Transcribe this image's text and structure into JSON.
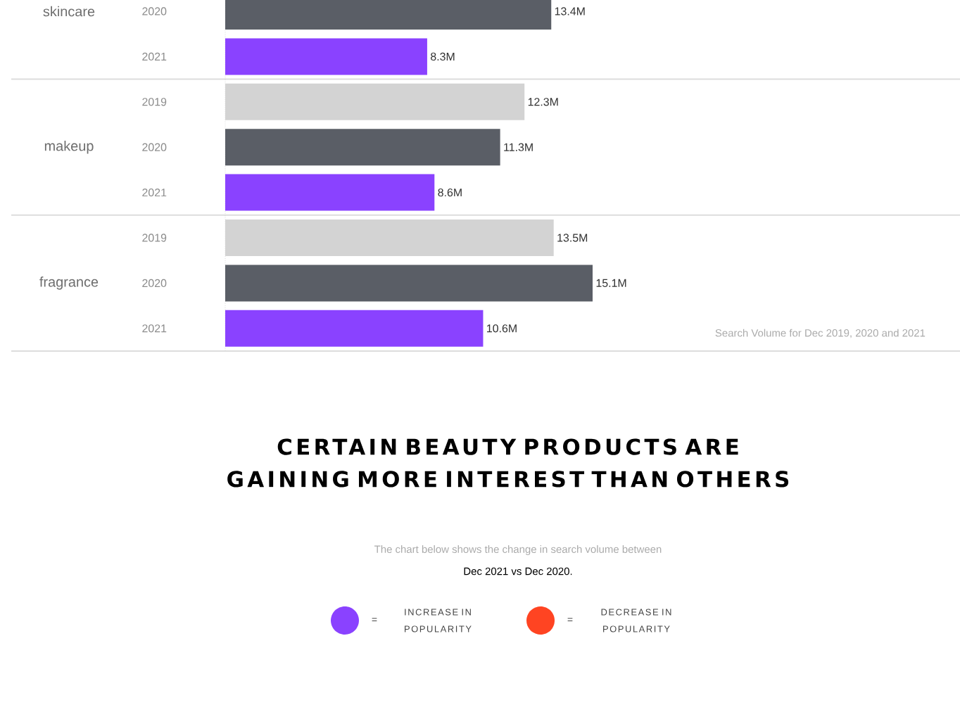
{
  "chart_data": {
    "type": "bar",
    "orientation": "horizontal",
    "categories": [
      "2020",
      "2021",
      "2019",
      "2020",
      "2021",
      "2019",
      "2020",
      "2021"
    ],
    "values": [
      13.4,
      8.3,
      12.3,
      11.3,
      8.6,
      13.5,
      15.1,
      10.6
    ],
    "colors": [
      "#5a5e66",
      "#8a42ff",
      "#d3d3d3",
      "#5a5e66",
      "#8a42ff",
      "#d3d3d3",
      "#5a5e66",
      "#8a42ff"
    ],
    "value_labels": [
      "13.4M",
      "8.3M",
      "12.3M",
      "11.3M",
      "8.6M",
      "13.5M",
      "15.1M",
      "10.6M"
    ],
    "annotations": [
      "skincare",
      "makeup",
      "fragrance",
      "Search Volume for Dec 2019, 2020 and 2021",
      "CERTAIN BEAUTY PRODUCTS ARE GAINING MORE INTEREST THAN OTHERS",
      "The chart below shows the change in search volume between",
      "Dec 2021 vs Dec 2020.",
      "=",
      "INCREASE IN POPULARITY",
      "=",
      "DECREASE IN POPULARITY"
    ]
  }
}
